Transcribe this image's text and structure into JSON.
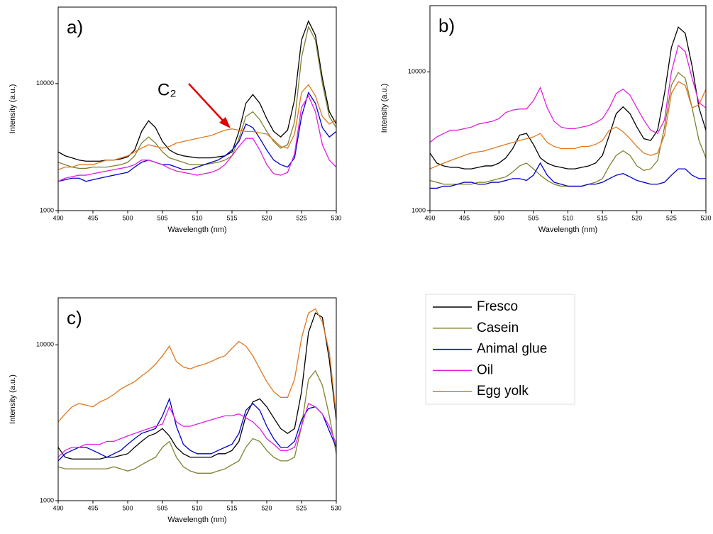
{
  "chart_data": [
    {
      "type": "line",
      "title": "a)",
      "xlabel": "Wavelength (nm)",
      "ylabel": "Intensity (a.u.)",
      "annotation": "C₂",
      "log_y": true,
      "grid": false,
      "xlim": [
        490,
        530
      ],
      "ylim": [
        1000,
        40000
      ],
      "xticks": [
        490,
        495,
        500,
        505,
        510,
        515,
        520,
        525,
        530
      ],
      "yticks": [
        1000,
        10000
      ],
      "x": [
        490,
        491,
        492,
        493,
        494,
        495,
        496,
        497,
        498,
        499,
        500,
        501,
        502,
        503,
        504,
        505,
        506,
        507,
        508,
        509,
        510,
        511,
        512,
        513,
        514,
        515,
        516,
        517,
        518,
        519,
        520,
        521,
        522,
        523,
        524,
        525,
        526,
        527,
        528,
        529,
        530
      ],
      "series": [
        {
          "name": "Fresco",
          "color": "#000000",
          "values": [
            2900,
            2700,
            2600,
            2500,
            2450,
            2450,
            2450,
            2500,
            2500,
            2550,
            2650,
            3000,
            4200,
            5100,
            4500,
            3500,
            3000,
            2800,
            2700,
            2650,
            2600,
            2600,
            2600,
            2650,
            2700,
            2900,
            4200,
            7000,
            8200,
            7000,
            5300,
            4200,
            3800,
            4300,
            7500,
            22000,
            31000,
            24000,
            11000,
            6000,
            4800
          ]
        },
        {
          "name": "Casein",
          "color": "#808030",
          "values": [
            2400,
            2300,
            2200,
            2150,
            2150,
            2200,
            2200,
            2200,
            2250,
            2300,
            2400,
            2700,
            3400,
            3800,
            3400,
            2900,
            2600,
            2500,
            2400,
            2300,
            2300,
            2300,
            2350,
            2400,
            2500,
            2700,
            3700,
            5500,
            6000,
            5200,
            4200,
            3500,
            3100,
            3300,
            5000,
            16000,
            28000,
            22000,
            10000,
            5500,
            4500
          ]
        },
        {
          "name": "Animal glue",
          "color": "#0000cc",
          "values": [
            1700,
            1750,
            1800,
            1800,
            1700,
            1750,
            1800,
            1850,
            1900,
            1950,
            2000,
            2200,
            2400,
            2500,
            2400,
            2300,
            2300,
            2200,
            2100,
            2100,
            2200,
            2300,
            2400,
            2500,
            2700,
            3000,
            3500,
            4800,
            4500,
            3700,
            3000,
            2500,
            2300,
            2200,
            2600,
            5500,
            8500,
            7000,
            4500,
            3800,
            4200
          ]
        },
        {
          "name": "Oil",
          "color": "#e020e0",
          "values": [
            1700,
            1800,
            1850,
            1900,
            1900,
            1950,
            2000,
            2050,
            2100,
            2150,
            2200,
            2300,
            2500,
            2500,
            2400,
            2300,
            2150,
            2050,
            2000,
            1950,
            1900,
            1950,
            2000,
            2100,
            2300,
            2700,
            3200,
            3700,
            3700,
            3000,
            2300,
            1950,
            1900,
            2000,
            2800,
            6500,
            8000,
            6000,
            3300,
            2500,
            2200
          ]
        },
        {
          "name": "Egg yolk",
          "color": "#e07820",
          "values": [
            2100,
            2200,
            2200,
            2300,
            2300,
            2300,
            2400,
            2500,
            2500,
            2600,
            2700,
            2900,
            3100,
            3300,
            3200,
            3100,
            3200,
            3400,
            3500,
            3600,
            3700,
            3800,
            3900,
            4100,
            4300,
            4400,
            4300,
            4200,
            4200,
            4100,
            4000,
            3600,
            3200,
            3100,
            4000,
            8500,
            9800,
            8000,
            5500,
            4800,
            5200
          ]
        }
      ]
    },
    {
      "type": "line",
      "title": "b)",
      "xlabel": "Wavelength (nm)",
      "ylabel": "Intensity (a.u.)",
      "log_y": true,
      "grid": false,
      "xlim": [
        490,
        530
      ],
      "ylim": [
        1000,
        30000
      ],
      "xticks": [
        490,
        495,
        500,
        505,
        510,
        515,
        520,
        525,
        530
      ],
      "yticks": [
        1000,
        10000
      ],
      "x": [
        490,
        491,
        492,
        493,
        494,
        495,
        496,
        497,
        498,
        499,
        500,
        501,
        502,
        503,
        504,
        505,
        506,
        507,
        508,
        509,
        510,
        511,
        512,
        513,
        514,
        515,
        516,
        517,
        518,
        519,
        520,
        521,
        522,
        523,
        524,
        525,
        526,
        527,
        528,
        529,
        530
      ],
      "series": [
        {
          "name": "Fresco",
          "color": "#000000",
          "values": [
            2600,
            2200,
            2100,
            2050,
            2050,
            2000,
            2000,
            2050,
            2100,
            2100,
            2200,
            2400,
            2800,
            3500,
            3600,
            3000,
            2400,
            2200,
            2100,
            2050,
            2000,
            2000,
            2050,
            2100,
            2200,
            2500,
            3500,
            5000,
            5600,
            5000,
            4000,
            3300,
            3200,
            3800,
            7000,
            15000,
            21000,
            19000,
            11000,
            5500,
            3800
          ]
        },
        {
          "name": "Casein",
          "color": "#808030",
          "values": [
            1650,
            1600,
            1550,
            1550,
            1550,
            1550,
            1550,
            1600,
            1600,
            1650,
            1700,
            1750,
            1900,
            2100,
            2200,
            2000,
            1800,
            1650,
            1550,
            1500,
            1500,
            1500,
            1500,
            1550,
            1600,
            1700,
            2100,
            2500,
            2700,
            2500,
            2100,
            1950,
            2000,
            2300,
            4000,
            8000,
            9900,
            9000,
            5500,
            3200,
            2400
          ]
        },
        {
          "name": "Animal glue",
          "color": "#0000cc",
          "values": [
            1450,
            1450,
            1500,
            1500,
            1550,
            1600,
            1600,
            1550,
            1550,
            1600,
            1600,
            1650,
            1700,
            1700,
            1650,
            1800,
            2200,
            1800,
            1600,
            1550,
            1500,
            1500,
            1500,
            1550,
            1550,
            1600,
            1700,
            1800,
            1850,
            1750,
            1650,
            1600,
            1550,
            1550,
            1600,
            1800,
            2000,
            2000,
            1800,
            1700,
            1700
          ]
        },
        {
          "name": "Oil",
          "color": "#e020e0",
          "values": [
            3100,
            3400,
            3600,
            3800,
            3800,
            3900,
            4000,
            4200,
            4300,
            4400,
            4600,
            5100,
            5300,
            5400,
            5400,
            6200,
            7700,
            5500,
            4400,
            4000,
            3900,
            3900,
            4000,
            4100,
            4300,
            4600,
            5500,
            7000,
            7500,
            6800,
            5500,
            4500,
            3800,
            3600,
            4500,
            10000,
            15500,
            14000,
            9000,
            6000,
            5500
          ]
        },
        {
          "name": "Egg yolk",
          "color": "#e07820",
          "values": [
            2000,
            2100,
            2200,
            2300,
            2400,
            2500,
            2600,
            2650,
            2700,
            2800,
            2900,
            3000,
            3100,
            3200,
            3300,
            3400,
            3600,
            3100,
            2900,
            2800,
            2800,
            2800,
            2900,
            2900,
            3000,
            3200,
            3800,
            4000,
            3700,
            3300,
            2900,
            2600,
            2500,
            2600,
            3500,
            7000,
            8500,
            8000,
            5500,
            5800,
            7500
          ]
        }
      ]
    },
    {
      "type": "line",
      "title": "c)",
      "xlabel": "Wavelength (nm)",
      "ylabel": "Intensity (a.u.)",
      "log_y": true,
      "grid": false,
      "xlim": [
        490,
        530
      ],
      "ylim": [
        1000,
        20000
      ],
      "xticks": [
        490,
        495,
        500,
        505,
        510,
        515,
        520,
        525,
        530
      ],
      "yticks": [
        1000,
        10000
      ],
      "x": [
        490,
        491,
        492,
        493,
        494,
        495,
        496,
        497,
        498,
        499,
        500,
        501,
        502,
        503,
        504,
        505,
        506,
        507,
        508,
        509,
        510,
        511,
        512,
        513,
        514,
        515,
        516,
        517,
        518,
        519,
        520,
        521,
        522,
        523,
        524,
        525,
        526,
        527,
        528,
        529,
        530
      ],
      "series": [
        {
          "name": "Fresco",
          "color": "#000000",
          "values": [
            2200,
            1900,
            1850,
            1850,
            1850,
            1850,
            1850,
            1900,
            1900,
            1950,
            2000,
            2200,
            2400,
            2600,
            2700,
            2900,
            2600,
            2200,
            2000,
            1900,
            1900,
            1900,
            1900,
            2000,
            2000,
            2100,
            2400,
            3500,
            4300,
            4500,
            4000,
            3400,
            2900,
            2700,
            2900,
            5000,
            12000,
            16000,
            15000,
            8000,
            3300
          ]
        },
        {
          "name": "Casein",
          "color": "#808030",
          "values": [
            1650,
            1600,
            1600,
            1600,
            1600,
            1600,
            1600,
            1600,
            1650,
            1600,
            1550,
            1600,
            1700,
            1800,
            1900,
            2200,
            2400,
            1900,
            1650,
            1550,
            1500,
            1500,
            1500,
            1550,
            1600,
            1700,
            1800,
            2200,
            2500,
            2400,
            2100,
            1900,
            1800,
            1800,
            1900,
            3000,
            6000,
            6800,
            5500,
            3500,
            2000
          ]
        },
        {
          "name": "Animal glue",
          "color": "#0000cc",
          "values": [
            1800,
            2000,
            2100,
            2200,
            2200,
            2100,
            2000,
            1900,
            2000,
            2100,
            2300,
            2500,
            2700,
            2800,
            2900,
            3500,
            4500,
            3000,
            2300,
            2100,
            2000,
            2000,
            2000,
            2100,
            2200,
            2300,
            2700,
            3800,
            4200,
            3800,
            3000,
            2500,
            2200,
            2200,
            2400,
            3300,
            3900,
            4000,
            3600,
            2800,
            2200
          ]
        },
        {
          "name": "Oil",
          "color": "#e020e0",
          "values": [
            1900,
            2100,
            2200,
            2200,
            2300,
            2300,
            2300,
            2400,
            2400,
            2500,
            2600,
            2700,
            2800,
            2900,
            3000,
            3100,
            4000,
            3200,
            3000,
            3000,
            3100,
            3200,
            3300,
            3400,
            3500,
            3500,
            3600,
            3400,
            3200,
            2900,
            2500,
            2300,
            2100,
            2100,
            2200,
            3000,
            4200,
            4000,
            3600,
            3000,
            2300
          ]
        },
        {
          "name": "Egg yolk",
          "color": "#e07820",
          "values": [
            3200,
            3600,
            4000,
            4200,
            4100,
            4000,
            4300,
            4500,
            4800,
            5200,
            5500,
            5800,
            6300,
            6800,
            7500,
            8500,
            9800,
            7800,
            7200,
            7000,
            7300,
            7500,
            7800,
            8200,
            8500,
            9500,
            10500,
            9800,
            8500,
            7000,
            5800,
            5000,
            4600,
            4600,
            6000,
            11000,
            16000,
            17000,
            14000,
            9000,
            3500
          ]
        }
      ]
    }
  ]
}
